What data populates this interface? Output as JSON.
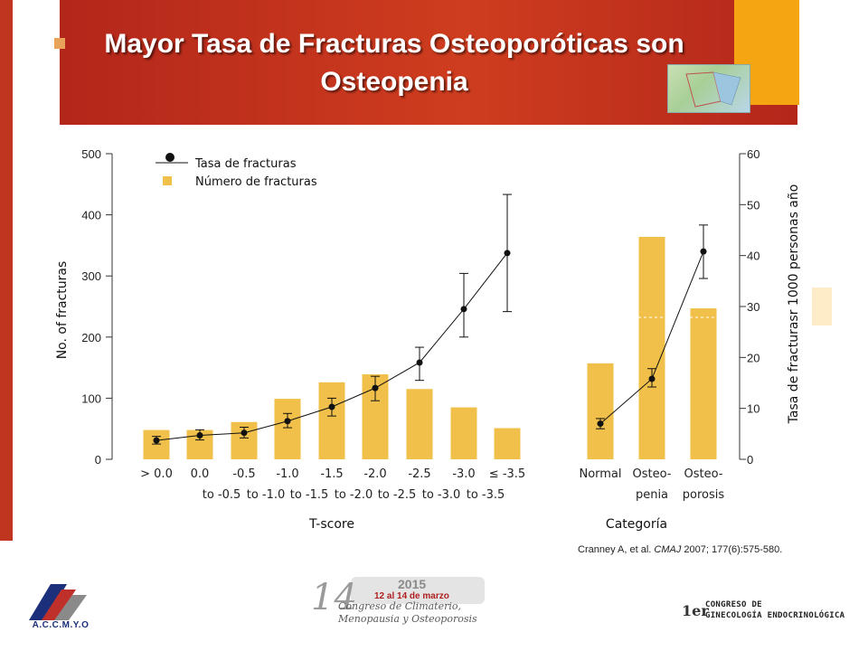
{
  "title": {
    "line1": "Mayor Tasa de Fracturas Osteoporóticas son",
    "line2": "Osteopenia"
  },
  "colors": {
    "banner": "#c8381e",
    "accent": "#f5a412",
    "bar": "#f0c04a",
    "line": "#111111"
  },
  "chart_data": {
    "type": "bar+line",
    "left_axis": {
      "label": "No. of fracturas",
      "range": [
        0,
        500
      ],
      "ticks": [
        "0",
        "100",
        "200",
        "300",
        "400",
        "500"
      ]
    },
    "right_axis": {
      "label": "Tasa de fracturasr 1000 personas año",
      "range": [
        0,
        60
      ],
      "ticks": [
        "0",
        "10",
        "20",
        "30",
        "40",
        "50",
        "60"
      ]
    },
    "legend": {
      "position": "top-left",
      "items": [
        {
          "label": "Tasa de fracturas",
          "kind": "line-marker"
        },
        {
          "label": "Número de fracturas",
          "kind": "bar"
        }
      ]
    },
    "groups": [
      {
        "label": "T-score",
        "categories": [
          {
            "line1": "> 0.0",
            "line2": ""
          },
          {
            "line1": "0.0",
            "line2": "to -0.5"
          },
          {
            "line1": "-0.5",
            "line2": "to -1.0"
          },
          {
            "line1": "-1.0",
            "line2": "to -1.5"
          },
          {
            "line1": "-1.5",
            "line2": "to -2.0"
          },
          {
            "line1": "-2.0",
            "line2": "to -2.5"
          },
          {
            "line1": "-2.5",
            "line2": "to -3.0"
          },
          {
            "line1": "-3.0",
            "line2": "to -3.5"
          },
          {
            "line1": "≤ -3.5",
            "line2": ""
          }
        ],
        "fractures": [
          48,
          48,
          61,
          99,
          126,
          139,
          115,
          85,
          51
        ],
        "rate": [
          3.7,
          4.7,
          5.2,
          7.5,
          10.3,
          14.0,
          19.0,
          29.5,
          40.5
        ],
        "rate_err_low": [
          3.0,
          3.8,
          4.2,
          6.2,
          8.5,
          11.5,
          15.5,
          24.0,
          29.0
        ],
        "rate_err_high": [
          4.5,
          5.8,
          6.3,
          9.0,
          12.0,
          16.3,
          22.0,
          36.5,
          52.0
        ]
      },
      {
        "label": "Categoría",
        "categories": [
          {
            "line1": "Normal",
            "line2": ""
          },
          {
            "line1": "Osteo-",
            "line2": "penia"
          },
          {
            "line1": "Osteo-",
            "line2": "porosis"
          }
        ],
        "fractures": [
          157,
          364,
          247
        ],
        "rate": [
          7.0,
          15.8,
          40.8
        ],
        "rate_err_low": [
          6.0,
          14.2,
          35.5
        ],
        "rate_err_high": [
          8.0,
          17.8,
          46.0
        ]
      }
    ]
  },
  "citation": {
    "authors": "Cranney  A, et al. ",
    "journal": "CMAJ",
    "details": " 2007;  177(6):575-580."
  },
  "logos": {
    "left": "A.C.C.M.Y.O",
    "center_year": "2015",
    "center_dates": "12 al 14 de marzo",
    "center_number": "14",
    "center_line1": "Congreso de Climaterio,",
    "center_line2": "Menopausia y Osteoporosis",
    "right_ordinal": "1er",
    "right_line1": "CONGRESO DE",
    "right_line2": "GINECOLOGÍA ENDOCRINOLÓGICA"
  }
}
